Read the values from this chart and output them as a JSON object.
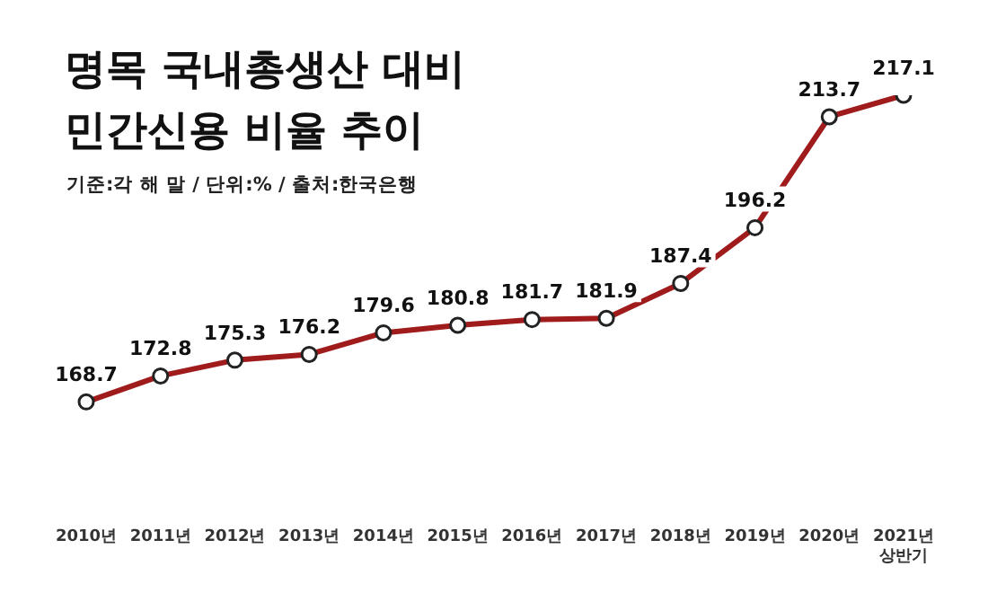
{
  "chart_data": {
    "type": "line",
    "title": "명목 국내총생산 대비\n민간신용 비율 추이",
    "subtitle": "기준:각 해 말 / 단위:% / 출처:한국은행",
    "categories": [
      "2010년",
      "2011년",
      "2012년",
      "2013년",
      "2014년",
      "2015년",
      "2016년",
      "2017년",
      "2018년",
      "2019년",
      "2020년",
      "2021년\n상반기"
    ],
    "series": [
      {
        "color": "#a01c1c",
        "values": [
          168.7,
          172.8,
          175.3,
          176.2,
          179.6,
          180.8,
          181.7,
          181.9,
          187.4,
          196.2,
          213.7,
          217.1
        ]
      }
    ],
    "data_labels": true,
    "marker": "circle",
    "line_style": "solid",
    "grid": false,
    "legend": false,
    "tick_labels": "x"
  }
}
